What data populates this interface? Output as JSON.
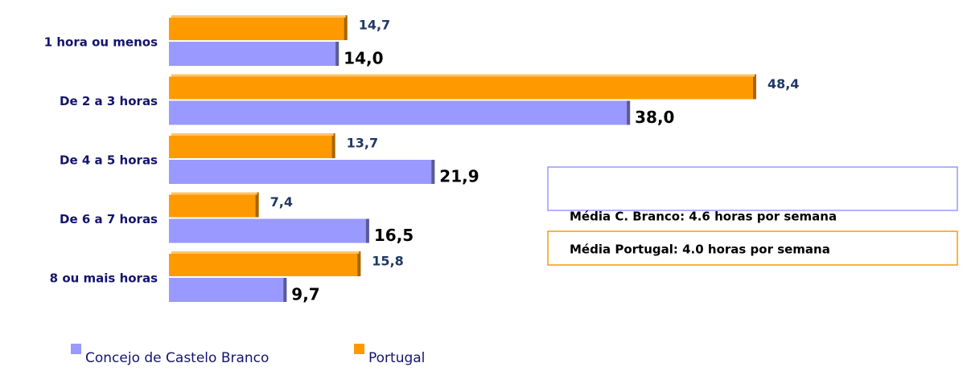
{
  "chart_data": {
    "type": "bar",
    "orientation": "horizontal",
    "categories": [
      "1 hora ou menos",
      "De 2 a 3 horas",
      "De 4 a 5 horas",
      "De 6 a 7 horas",
      "8 ou mais horas"
    ],
    "series": [
      {
        "name": "Concejo de Castelo Branco",
        "color": "#9999ff",
        "values": [
          14.0,
          38.0,
          21.9,
          16.5,
          9.7
        ],
        "value_labels": [
          "14,0",
          "38,0",
          "21,9",
          "16,5",
          "9,7"
        ]
      },
      {
        "name": "Portugal",
        "color": "#ff9900",
        "values": [
          14.7,
          48.4,
          13.7,
          7.4,
          15.8
        ],
        "value_labels": [
          "14,7",
          "48,4",
          "13,7",
          "7,4",
          "15,8"
        ]
      }
    ],
    "annotations": [
      "Média C. Branco: 4.6 horas por semana",
      "Média Portugal: 4.0 horas por semana"
    ]
  }
}
